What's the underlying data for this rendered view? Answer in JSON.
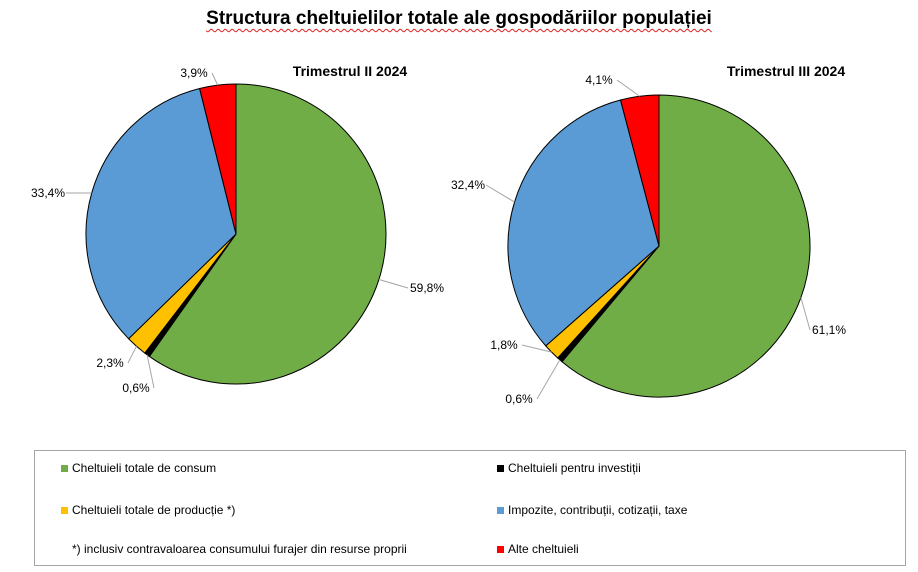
{
  "title": "Structura cheltuielilor totale ale gospodăriilor populației",
  "colors": {
    "consum": "#70AD47",
    "investitii": "#000000",
    "productie": "#FFC000",
    "impozite": "#5B9BD5",
    "alte": "#FF0000"
  },
  "chart_data": [
    {
      "type": "pie",
      "title": "Trimestrul  II 2024",
      "labels": [
        "Cheltuieli totale de consum",
        "Cheltuieli pentru investiții",
        "Cheltuieli totale de producție *)",
        "Impozite, contribuții, cotizații, taxe",
        "Alte cheltuieli"
      ],
      "values": [
        59.8,
        0.6,
        2.3,
        33.4,
        3.9
      ],
      "value_labels": [
        "59,8%",
        "0,6%",
        "2,3%",
        "33,4%",
        "3,9%"
      ],
      "legend_position": "bottom"
    },
    {
      "type": "pie",
      "title": "Trimestrul  III 2024",
      "labels": [
        "Cheltuieli totale de consum",
        "Cheltuieli pentru investiții",
        "Cheltuieli totale de producție *)",
        "Impozite, contribuții, cotizații, taxe",
        "Alte cheltuieli"
      ],
      "values": [
        61.1,
        0.6,
        1.8,
        32.4,
        4.1
      ],
      "value_labels": [
        "61,1%",
        "0,6%",
        "1,8%",
        "32,4%",
        "4,1%"
      ],
      "legend_position": "bottom"
    }
  ],
  "legend": {
    "items": [
      {
        "label": "Cheltuieli totale de consum"
      },
      {
        "label": "Cheltuieli pentru investiții"
      },
      {
        "label": "Cheltuieli totale de producție *)"
      },
      {
        "label": "Impozite, contribuții, cotizații, taxe"
      },
      {
        "label": "Alte cheltuieli"
      }
    ],
    "note": "*) inclusiv contravaloarea consumului furajer din resurse proprii"
  }
}
